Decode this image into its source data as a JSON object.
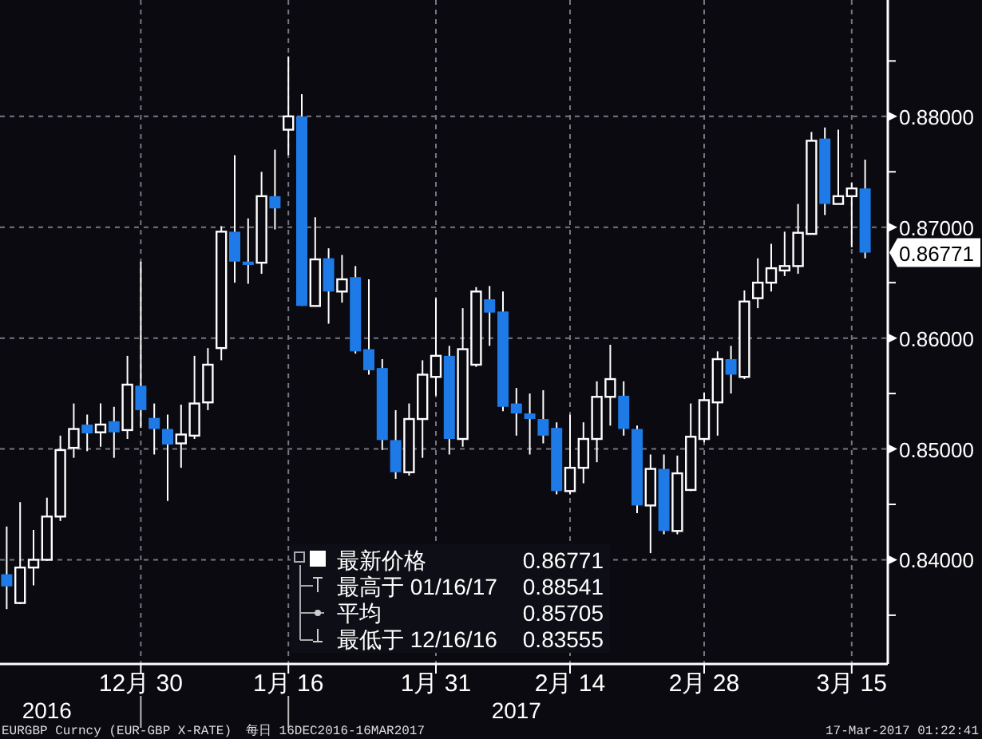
{
  "chart_data": {
    "type": "candlestick",
    "categories": [
      null,
      null,
      null,
      null,
      null,
      null,
      null,
      null,
      null,
      null,
      "12月 30",
      null,
      null,
      null,
      null,
      null,
      null,
      null,
      null,
      null,
      null,
      "1月 16",
      null,
      null,
      null,
      null,
      null,
      null,
      null,
      null,
      null,
      null,
      "1月 31",
      null,
      null,
      null,
      null,
      null,
      null,
      null,
      null,
      null,
      "2月 14",
      null,
      null,
      null,
      null,
      null,
      null,
      null,
      null,
      null,
      "2月 28",
      null,
      null,
      null,
      null,
      null,
      null,
      null,
      null,
      null,
      null,
      "3月 15",
      null
    ],
    "ohlc": [
      [
        0.8387,
        0.843,
        0.83555,
        0.8376
      ],
      [
        0.8361,
        0.8452,
        0.836,
        0.8393
      ],
      [
        0.8393,
        0.8427,
        0.8377,
        0.84
      ],
      [
        0.84,
        0.8456,
        0.8399,
        0.8439
      ],
      [
        0.8439,
        0.8512,
        0.8435,
        0.8499
      ],
      [
        0.8501,
        0.8541,
        0.8492,
        0.8518
      ],
      [
        0.8522,
        0.8531,
        0.8498,
        0.8514
      ],
      [
        0.8515,
        0.8541,
        0.8502,
        0.8522
      ],
      [
        0.8525,
        0.8538,
        0.8492,
        0.8515
      ],
      [
        0.8517,
        0.8584,
        0.8509,
        0.8558
      ],
      [
        0.8557,
        0.8669,
        0.8519,
        0.8535
      ],
      [
        0.8528,
        0.8541,
        0.8495,
        0.8518
      ],
      [
        0.8518,
        0.8531,
        0.8453,
        0.8504
      ],
      [
        0.8505,
        0.854,
        0.8483,
        0.8513
      ],
      [
        0.8512,
        0.8584,
        0.8509,
        0.8541
      ],
      [
        0.8542,
        0.8591,
        0.8535,
        0.8576
      ],
      [
        0.8591,
        0.8701,
        0.858,
        0.8696
      ],
      [
        0.8696,
        0.8765,
        0.865,
        0.8669
      ],
      [
        0.8669,
        0.8708,
        0.8649,
        0.8666
      ],
      [
        0.8668,
        0.875,
        0.8658,
        0.8728
      ],
      [
        0.8728,
        0.877,
        0.8698,
        0.8717
      ],
      [
        0.8788,
        0.88541,
        0.8765,
        0.88
      ],
      [
        0.88,
        0.882,
        0.8629,
        0.8629
      ],
      [
        0.8629,
        0.8709,
        0.8629,
        0.8671
      ],
      [
        0.8672,
        0.8681,
        0.8613,
        0.8642
      ],
      [
        0.8642,
        0.8675,
        0.8632,
        0.8653
      ],
      [
        0.8655,
        0.8665,
        0.8586,
        0.8588
      ],
      [
        0.859,
        0.8653,
        0.8567,
        0.8571
      ],
      [
        0.8573,
        0.8581,
        0.8499,
        0.8508
      ],
      [
        0.8508,
        0.8535,
        0.8473,
        0.8479
      ],
      [
        0.8479,
        0.8541,
        0.8476,
        0.8527
      ],
      [
        0.8527,
        0.858,
        0.8492,
        0.8567
      ],
      [
        0.8565,
        0.8636,
        0.8548,
        0.8584
      ],
      [
        0.8584,
        0.8593,
        0.8495,
        0.8509
      ],
      [
        0.8509,
        0.8627,
        0.8502,
        0.859
      ],
      [
        0.8576,
        0.8646,
        0.8574,
        0.8642
      ],
      [
        0.8635,
        0.8647,
        0.8593,
        0.8623
      ],
      [
        0.8624,
        0.8642,
        0.8534,
        0.8538
      ],
      [
        0.8541,
        0.8555,
        0.8512,
        0.8532
      ],
      [
        0.8532,
        0.855,
        0.8495,
        0.8527
      ],
      [
        0.8527,
        0.8553,
        0.8505,
        0.8512
      ],
      [
        0.8519,
        0.8524,
        0.8459,
        0.8462
      ],
      [
        0.8462,
        0.8531,
        0.8459,
        0.8483
      ],
      [
        0.8483,
        0.8524,
        0.8469,
        0.8509
      ],
      [
        0.8509,
        0.8561,
        0.8488,
        0.8547
      ],
      [
        0.8547,
        0.8594,
        0.8521,
        0.8563
      ],
      [
        0.8548,
        0.8561,
        0.8512,
        0.8518
      ],
      [
        0.8518,
        0.8521,
        0.8442,
        0.8449
      ],
      [
        0.8449,
        0.8495,
        0.8406,
        0.8482
      ],
      [
        0.8482,
        0.8495,
        0.8423,
        0.8426
      ],
      [
        0.8426,
        0.8494,
        0.8423,
        0.8478
      ],
      [
        0.8463,
        0.8541,
        0.8462,
        0.8511
      ],
      [
        0.8509,
        0.8551,
        0.8506,
        0.8544
      ],
      [
        0.8542,
        0.8588,
        0.8512,
        0.8581
      ],
      [
        0.8581,
        0.8593,
        0.855,
        0.8567
      ],
      [
        0.8565,
        0.8643,
        0.8563,
        0.8633
      ],
      [
        0.8636,
        0.8672,
        0.8627,
        0.865
      ],
      [
        0.865,
        0.8685,
        0.8642,
        0.8663
      ],
      [
        0.8661,
        0.8696,
        0.8656,
        0.8665
      ],
      [
        0.8665,
        0.8721,
        0.8658,
        0.8695
      ],
      [
        0.8694,
        0.8786,
        0.8694,
        0.8778
      ],
      [
        0.878,
        0.879,
        0.8711,
        0.8721
      ],
      [
        0.8721,
        0.8788,
        0.8721,
        0.8728
      ],
      [
        0.8728,
        0.874,
        0.8682,
        0.8735
      ],
      [
        0.8735,
        0.8761,
        0.8672,
        0.86771
      ]
    ],
    "colors": [
      "#1e7ae6",
      "#ffffff",
      "#ffffff",
      "#ffffff",
      "#ffffff",
      "#ffffff",
      "#1e7ae6",
      "#ffffff",
      "#1e7ae6",
      "#ffffff",
      "#1e7ae6",
      "#1e7ae6",
      "#1e7ae6",
      "#ffffff",
      "#ffffff",
      "#ffffff",
      "#ffffff",
      "#1e7ae6",
      "#1e7ae6",
      "#ffffff",
      "#1e7ae6",
      "#ffffff",
      "#1e7ae6",
      "#ffffff",
      "#1e7ae6",
      "#ffffff",
      "#1e7ae6",
      "#1e7ae6",
      "#1e7ae6",
      "#1e7ae6",
      "#ffffff",
      "#ffffff",
      "#ffffff",
      "#1e7ae6",
      "#ffffff",
      "#ffffff",
      "#1e7ae6",
      "#1e7ae6",
      "#1e7ae6",
      "#1e7ae6",
      "#1e7ae6",
      "#1e7ae6",
      "#ffffff",
      "#ffffff",
      "#ffffff",
      "#ffffff",
      "#1e7ae6",
      "#1e7ae6",
      "#ffffff",
      "#1e7ae6",
      "#ffffff",
      "#ffffff",
      "#ffffff",
      "#ffffff",
      "#1e7ae6",
      "#ffffff",
      "#ffffff",
      "#ffffff",
      "#ffffff",
      "#ffffff",
      "#ffffff",
      "#1e7ae6",
      "#ffffff",
      "#ffffff",
      "#1e7ae6"
    ],
    "ylim": [
      0.8306,
      0.8905
    ],
    "yticks": [
      {
        "value": 0.835,
        "label": null
      },
      {
        "value": 0.84,
        "label": "0.84000"
      },
      {
        "value": 0.845,
        "label": null
      },
      {
        "value": 0.85,
        "label": "0.85000"
      },
      {
        "value": 0.855,
        "label": null
      },
      {
        "value": 0.86,
        "label": "0.86000"
      },
      {
        "value": 0.865,
        "label": null
      },
      {
        "value": 0.87,
        "label": "0.87000"
      },
      {
        "value": 0.875,
        "label": null
      },
      {
        "value": 0.88,
        "label": "0.88000"
      },
      {
        "value": 0.885,
        "label": null
      }
    ],
    "grid": true,
    "annotations": [
      "2016",
      "2017",
      "EURGBP Curncy (EUR-GBP X-RATE)",
      "每日 16DEC2016-16MAR2017",
      "17-Mar-2017 01:22:41",
      "最新价格",
      "0.86771",
      "最高于 01/16/17",
      "0.88541",
      "平均",
      "0.85705",
      "最低于 12/16/16",
      "0.83555",
      "0.86771"
    ]
  }
}
